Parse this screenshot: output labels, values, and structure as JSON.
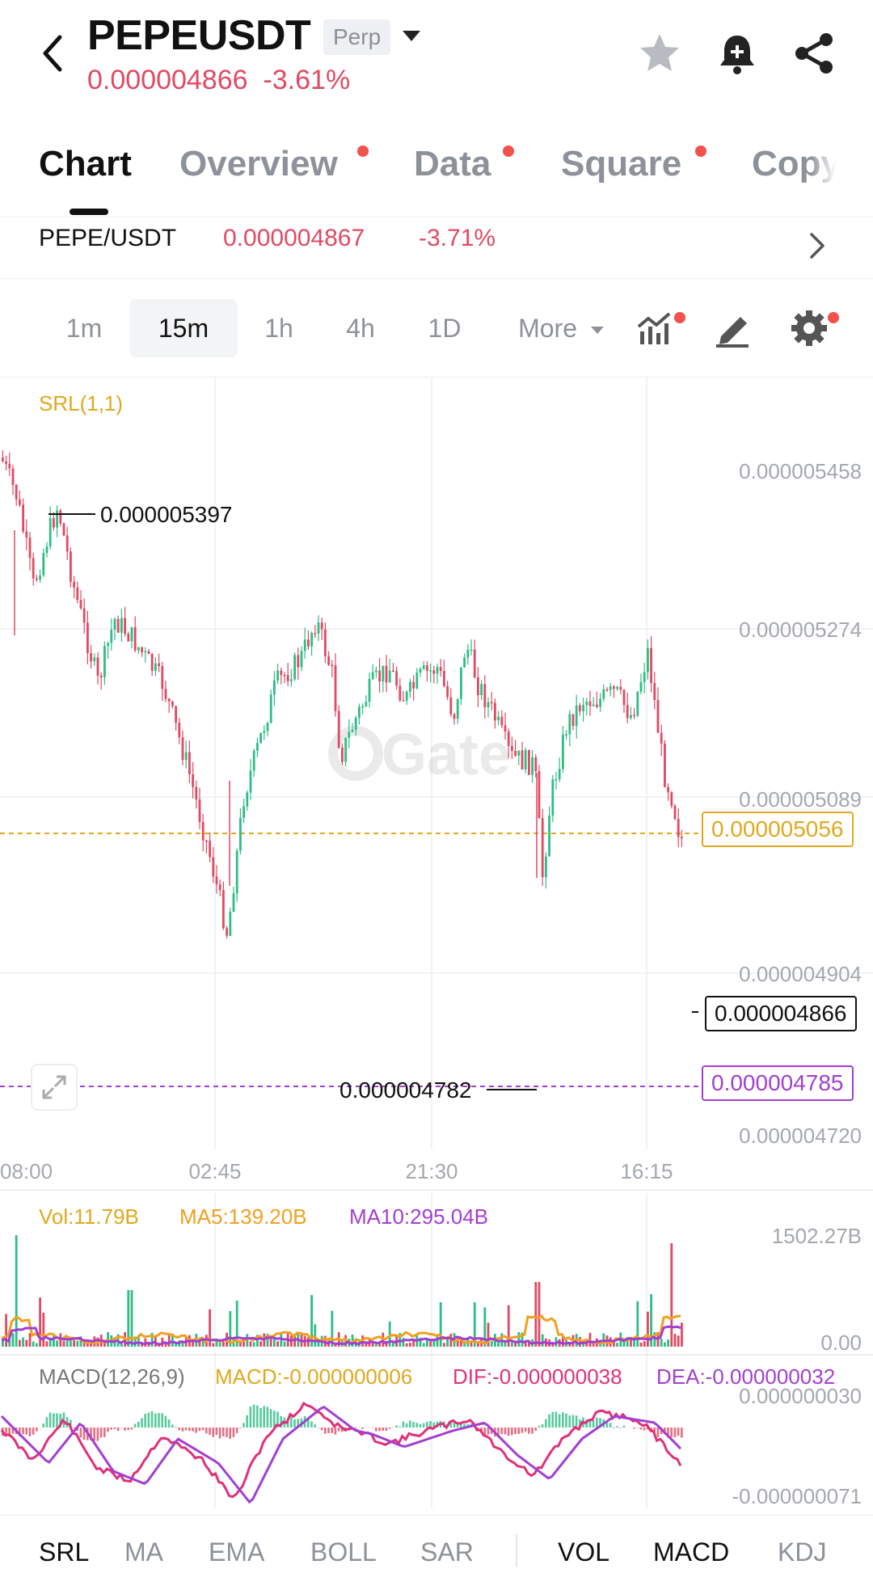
{
  "header": {
    "symbol": "PEPEUSDT",
    "contract_type": "Perp",
    "last_price": "0.000004866",
    "change_pct": "-3.61%",
    "icons": [
      "back-arrow-icon",
      "star-icon",
      "bell-add-icon",
      "share-icon"
    ]
  },
  "tabs": [
    {
      "label": "Chart",
      "active": true,
      "dot": false
    },
    {
      "label": "Overview",
      "active": false,
      "dot": true
    },
    {
      "label": "Data",
      "active": false,
      "dot": true
    },
    {
      "label": "Square",
      "active": false,
      "dot": true
    },
    {
      "label": "Copy",
      "active": false,
      "dot": false
    }
  ],
  "spot_pair": {
    "label": "PEPE/USDT",
    "price": "0.000004867",
    "change_pct": "-3.71%"
  },
  "intervals": {
    "items": [
      "1m",
      "15m",
      "1h",
      "4h",
      "1D"
    ],
    "active": "15m",
    "more_label": "More"
  },
  "chart": {
    "indicator_label": "SRL(1,1)",
    "watermark": "Gate",
    "y_ticks": [
      "0.000005458",
      "0.000005274",
      "0.000005089",
      "0.000004904",
      "0.000004720"
    ],
    "x_ticks": [
      "08:00",
      "02:45",
      "21:30",
      "16:15"
    ],
    "high_label": "0.000005397",
    "low_label": "0.000004782",
    "srl_upper": "0.000005056",
    "srl_lower": "0.000004785",
    "last_price_box": "0.000004866"
  },
  "volume": {
    "vol": "Vol:11.79B",
    "ma5": "MA5:139.20B",
    "ma10": "MA10:295.04B",
    "max_label": "1502.27B",
    "zero_label": "0.00"
  },
  "macd": {
    "title": "MACD(12,26,9)",
    "macd": "MACD:-0.000000006",
    "dif": "DIF:-0.000000038",
    "dea": "DEA:-0.000000032",
    "top_label": "0.000000030",
    "bottom_label": "-0.000000071"
  },
  "bottom_bar": {
    "left": [
      "SRL",
      "MA",
      "EMA",
      "BOLL",
      "SAR"
    ],
    "right": [
      "VOL",
      "MACD",
      "KDJ"
    ],
    "active": [
      "SRL",
      "VOL",
      "MACD"
    ]
  },
  "colors": {
    "up": "#2ebd85",
    "down": "#e04a63",
    "srl_upper": "#e0a81e",
    "srl_lower": "#a23fd1",
    "ma5": "#f0a020",
    "ma10": "#a23fd1",
    "dif": "#e0307a",
    "dea": "#a23fd1"
  }
}
